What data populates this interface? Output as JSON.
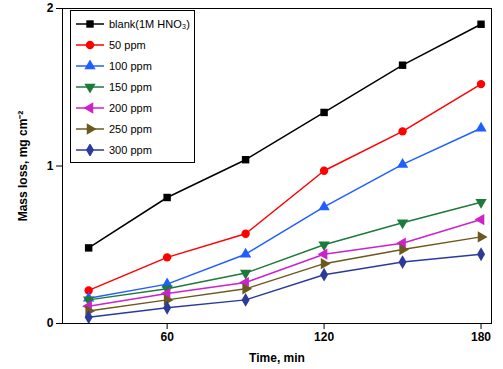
{
  "chart_data": {
    "type": "line",
    "x_label": "Time, min",
    "y_label": "Mass loss, mg cm⁻²",
    "x": [
      30,
      60,
      90,
      120,
      150,
      180
    ],
    "xlim": [
      20,
      184
    ],
    "xticks": [
      60,
      120,
      180
    ],
    "ylim": [
      0,
      2
    ],
    "yticks": [
      0,
      1,
      2
    ],
    "grid": false,
    "legend": "top-left",
    "series": [
      {
        "name": "blank(1M HNO₃)",
        "color": "#000000",
        "marker": "square",
        "values": [
          0.48,
          0.8,
          1.04,
          1.34,
          1.64,
          1.9
        ]
      },
      {
        "name": "50 ppm",
        "color": "#ff0000",
        "marker": "circle",
        "values": [
          0.21,
          0.42,
          0.57,
          0.97,
          1.22,
          1.52
        ]
      },
      {
        "name": "100 ppm",
        "color": "#1f5fff",
        "marker": "triangle-up",
        "values": [
          0.16,
          0.25,
          0.44,
          0.74,
          1.01,
          1.24
        ]
      },
      {
        "name": "150 ppm",
        "color": "#1e7a3a",
        "marker": "triangle-down",
        "values": [
          0.15,
          0.22,
          0.32,
          0.5,
          0.64,
          0.77
        ]
      },
      {
        "name": "200 ppm",
        "color": "#cc22cc",
        "marker": "triangle-left",
        "values": [
          0.11,
          0.19,
          0.26,
          0.44,
          0.51,
          0.66
        ]
      },
      {
        "name": "250 ppm",
        "color": "#6b5a1e",
        "marker": "triangle-right",
        "values": [
          0.08,
          0.15,
          0.22,
          0.38,
          0.47,
          0.55
        ]
      },
      {
        "name": "300 ppm",
        "color": "#2b3a9b",
        "marker": "diamond",
        "values": [
          0.04,
          0.1,
          0.15,
          0.31,
          0.39,
          0.44
        ]
      }
    ]
  }
}
